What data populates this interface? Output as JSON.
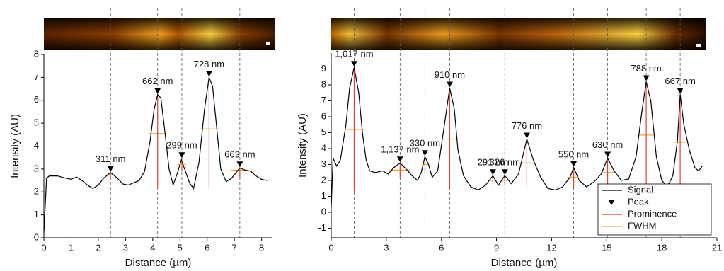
{
  "chart_data": [
    {
      "type": "line",
      "xlabel": "Distance (µm)",
      "ylabel": "Intensity (AU)",
      "xlim": [
        0,
        8.4
      ],
      "ylim": [
        0,
        8
      ],
      "xticks": [
        0,
        1,
        2,
        3,
        4,
        5,
        6,
        7,
        8
      ],
      "yticks": [
        0,
        1,
        2,
        3,
        4,
        5,
        6,
        7,
        8
      ],
      "signal_color": "#000000",
      "peak_color": "#000000",
      "prominence_color": "#e8412b",
      "fwhm_color": "#f3a73b",
      "x": [
        0,
        0.1,
        0.2,
        0.5,
        0.8,
        1.0,
        1.2,
        1.4,
        1.6,
        1.8,
        2.0,
        2.2,
        2.45,
        2.7,
        2.9,
        3.1,
        3.3,
        3.5,
        3.7,
        3.9,
        4.05,
        4.18,
        4.3,
        4.45,
        4.6,
        4.75,
        4.9,
        5.05,
        5.2,
        5.35,
        5.5,
        5.7,
        5.9,
        6.07,
        6.2,
        6.35,
        6.5,
        6.7,
        6.9,
        7.1,
        7.2,
        7.4,
        7.6,
        7.8,
        8.0,
        8.2
      ],
      "values": [
        0.2,
        2.6,
        2.7,
        2.7,
        2.6,
        2.55,
        2.65,
        2.5,
        2.3,
        2.15,
        2.3,
        2.6,
        2.85,
        2.6,
        2.35,
        2.3,
        2.4,
        2.5,
        2.9,
        4.2,
        5.6,
        6.25,
        6.1,
        4.6,
        3.0,
        2.3,
        2.8,
        3.4,
        2.9,
        2.4,
        2.15,
        3.3,
        5.6,
        7.0,
        6.6,
        4.8,
        3.0,
        2.45,
        2.6,
        2.9,
        3.05,
        2.95,
        2.9,
        2.7,
        2.55,
        2.5
      ],
      "peak_x": [
        2.45,
        4.18,
        5.07,
        6.07,
        7.2
      ],
      "peak_values": [
        2.85,
        6.25,
        3.45,
        7.0,
        3.05
      ],
      "peak_labels": [
        "311 nm",
        "662 nm",
        "299 nm",
        "728 nm",
        "663 nm"
      ],
      "prominence_base": [
        2.55,
        2.2,
        2.9,
        2.2,
        2.6
      ],
      "fwhm_values": [
        2.75,
        4.55,
        3.2,
        4.75,
        2.95
      ],
      "fwhm_start": [
        2.29,
        3.85,
        4.92,
        5.71,
        6.87
      ],
      "fwhm_end": [
        2.61,
        4.51,
        5.22,
        6.44,
        7.53
      ]
    },
    {
      "type": "line",
      "xlabel": "Distance (µm)",
      "ylabel": "Intensity (AU)",
      "xlim": [
        0,
        21
      ],
      "ylim": [
        -1.6,
        10
      ],
      "xticks": [
        0,
        3,
        6,
        9,
        12,
        15,
        18,
        21
      ],
      "yticks": [
        -1,
        0,
        1,
        2,
        3,
        4,
        5,
        6,
        7,
        8,
        9
      ],
      "signal_color": "#000000",
      "peak_color": "#000000",
      "prominence_color": "#e8412b",
      "fwhm_color": "#f3a73b",
      "legend": "lower right",
      "legend_entries": [
        "Signal",
        "Peak",
        "Prominence",
        "FWHM"
      ],
      "x": [
        0,
        0.1,
        0.3,
        0.5,
        0.8,
        1.0,
        1.25,
        1.5,
        1.7,
        1.9,
        2.1,
        2.4,
        2.8,
        3.1,
        3.4,
        3.75,
        4.1,
        4.4,
        4.7,
        4.9,
        5.1,
        5.3,
        5.5,
        5.8,
        6.1,
        6.45,
        6.7,
        6.9,
        7.2,
        7.6,
        8.0,
        8.4,
        8.8,
        9.1,
        9.45,
        9.8,
        10.2,
        10.65,
        11.0,
        11.4,
        11.8,
        12.2,
        12.6,
        13.0,
        13.2,
        13.5,
        13.9,
        14.3,
        14.7,
        15.05,
        15.4,
        15.8,
        16.2,
        16.6,
        16.9,
        17.15,
        17.4,
        17.7,
        18.0,
        18.3,
        18.6,
        18.85,
        19.0,
        19.2,
        19.5,
        19.8,
        20.0,
        20.2
      ],
      "values": [
        0.3,
        3.4,
        2.9,
        3.3,
        5.5,
        7.8,
        9.1,
        7.5,
        5.0,
        3.3,
        2.6,
        2.5,
        2.6,
        2.4,
        2.8,
        3.1,
        2.7,
        2.3,
        2.0,
        2.5,
        3.5,
        3.0,
        2.2,
        2.6,
        5.0,
        7.8,
        6.5,
        3.9,
        2.3,
        1.6,
        1.4,
        1.7,
        2.3,
        1.7,
        2.3,
        1.8,
        2.4,
        4.6,
        3.3,
        2.2,
        1.5,
        1.4,
        1.6,
        2.2,
        2.8,
        2.0,
        1.6,
        1.9,
        2.4,
        3.4,
        2.6,
        2.0,
        2.1,
        3.5,
        6.2,
        8.2,
        7.0,
        3.5,
        2.0,
        1.6,
        2.3,
        4.5,
        7.4,
        5.5,
        3.9,
        2.8,
        2.6,
        2.9
      ],
      "peak_x": [
        1.25,
        3.75,
        5.1,
        6.45,
        8.8,
        9.45,
        10.65,
        13.2,
        15.05,
        17.15,
        19.0
      ],
      "peak_values": [
        9.1,
        3.1,
        3.5,
        7.8,
        2.3,
        2.3,
        4.6,
        2.8,
        3.4,
        8.2,
        7.4
      ],
      "peak_labels": [
        "1,017 nm",
        "1,137 nm",
        "330 nm",
        "910 nm",
        "291 nm",
        "326 nm",
        "776 nm",
        "550 nm",
        "630 nm",
        "788 nm",
        "667 nm"
      ],
      "prominence_base": [
        1.3,
        2.2,
        2.5,
        1.4,
        1.7,
        1.7,
        1.6,
        1.6,
        1.6,
        1.5,
        1.4
      ],
      "fwhm_values": [
        5.2,
        2.65,
        3.0,
        4.6,
        2.0,
        2.0,
        3.1,
        2.2,
        2.5,
        4.85,
        4.4
      ],
      "fwhm_start": [
        0.74,
        3.18,
        4.93,
        5.99,
        8.65,
        9.29,
        10.26,
        12.93,
        14.73,
        16.76,
        18.67
      ],
      "fwhm_end": [
        1.76,
        4.32,
        5.27,
        6.91,
        8.95,
        9.61,
        11.04,
        13.48,
        15.37,
        17.54,
        19.33
      ]
    }
  ]
}
